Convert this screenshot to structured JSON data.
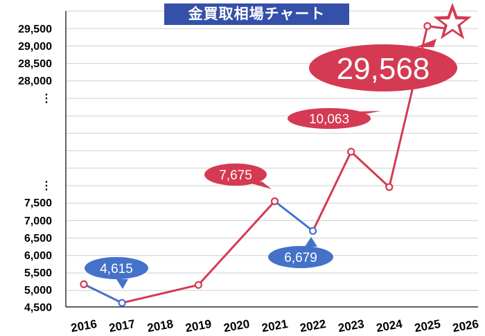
{
  "colors": {
    "rise": "#d43a52",
    "fall": "#4572c9",
    "title_bg": "#3550a8",
    "grid": "#cfcfcf",
    "axis": "#000000"
  },
  "chart_data": {
    "type": "line",
    "title": "金買取相場チャート",
    "xlabel": "",
    "ylabel": "",
    "grid": true,
    "categories": [
      "2016",
      "2017",
      "2018",
      "2019",
      "2020",
      "2021",
      "2022",
      "2023",
      "2024",
      "2025",
      "2026"
    ],
    "y_tick_labels": [
      "29,500",
      "29,000",
      "28,500",
      "28,000",
      "⋮",
      "⋮",
      "7,500",
      "7,000",
      "6,500",
      "6,000",
      "5,500",
      "5,000",
      "4,500"
    ],
    "y_axis_break": {
      "lower_max": 7500,
      "upper_min": 28000
    },
    "series": [
      {
        "values": [
          {
            "x": 2016.0,
            "y": 5150,
            "color": "rise"
          },
          {
            "x": 2017.0,
            "y": 4615,
            "color": "fall"
          },
          {
            "x": 2019.0,
            "y": 5130,
            "color": "rise"
          },
          {
            "x": 2021.0,
            "y": 7675,
            "color": "rise"
          },
          {
            "x": 2022.0,
            "y": 6679,
            "color": "fall"
          },
          {
            "x": 2023.0,
            "y": 16000,
            "color": "rise"
          },
          {
            "x": 2024.0,
            "y": 10063,
            "color": "rise"
          },
          {
            "x": 2025.0,
            "y": 29568,
            "color": "rise"
          }
        ]
      }
    ],
    "data_labels": [
      {
        "text": "4,615",
        "x": 2017,
        "color": "fall"
      },
      {
        "text": "7,675",
        "x": 2021,
        "color": "rise"
      },
      {
        "text": "6,679",
        "x": 2022,
        "color": "fall"
      },
      {
        "text": "10,063",
        "x": 2024,
        "color": "rise"
      },
      {
        "text": "29,568",
        "x": 2025,
        "color": "rise"
      }
    ],
    "end_marker": "star"
  }
}
